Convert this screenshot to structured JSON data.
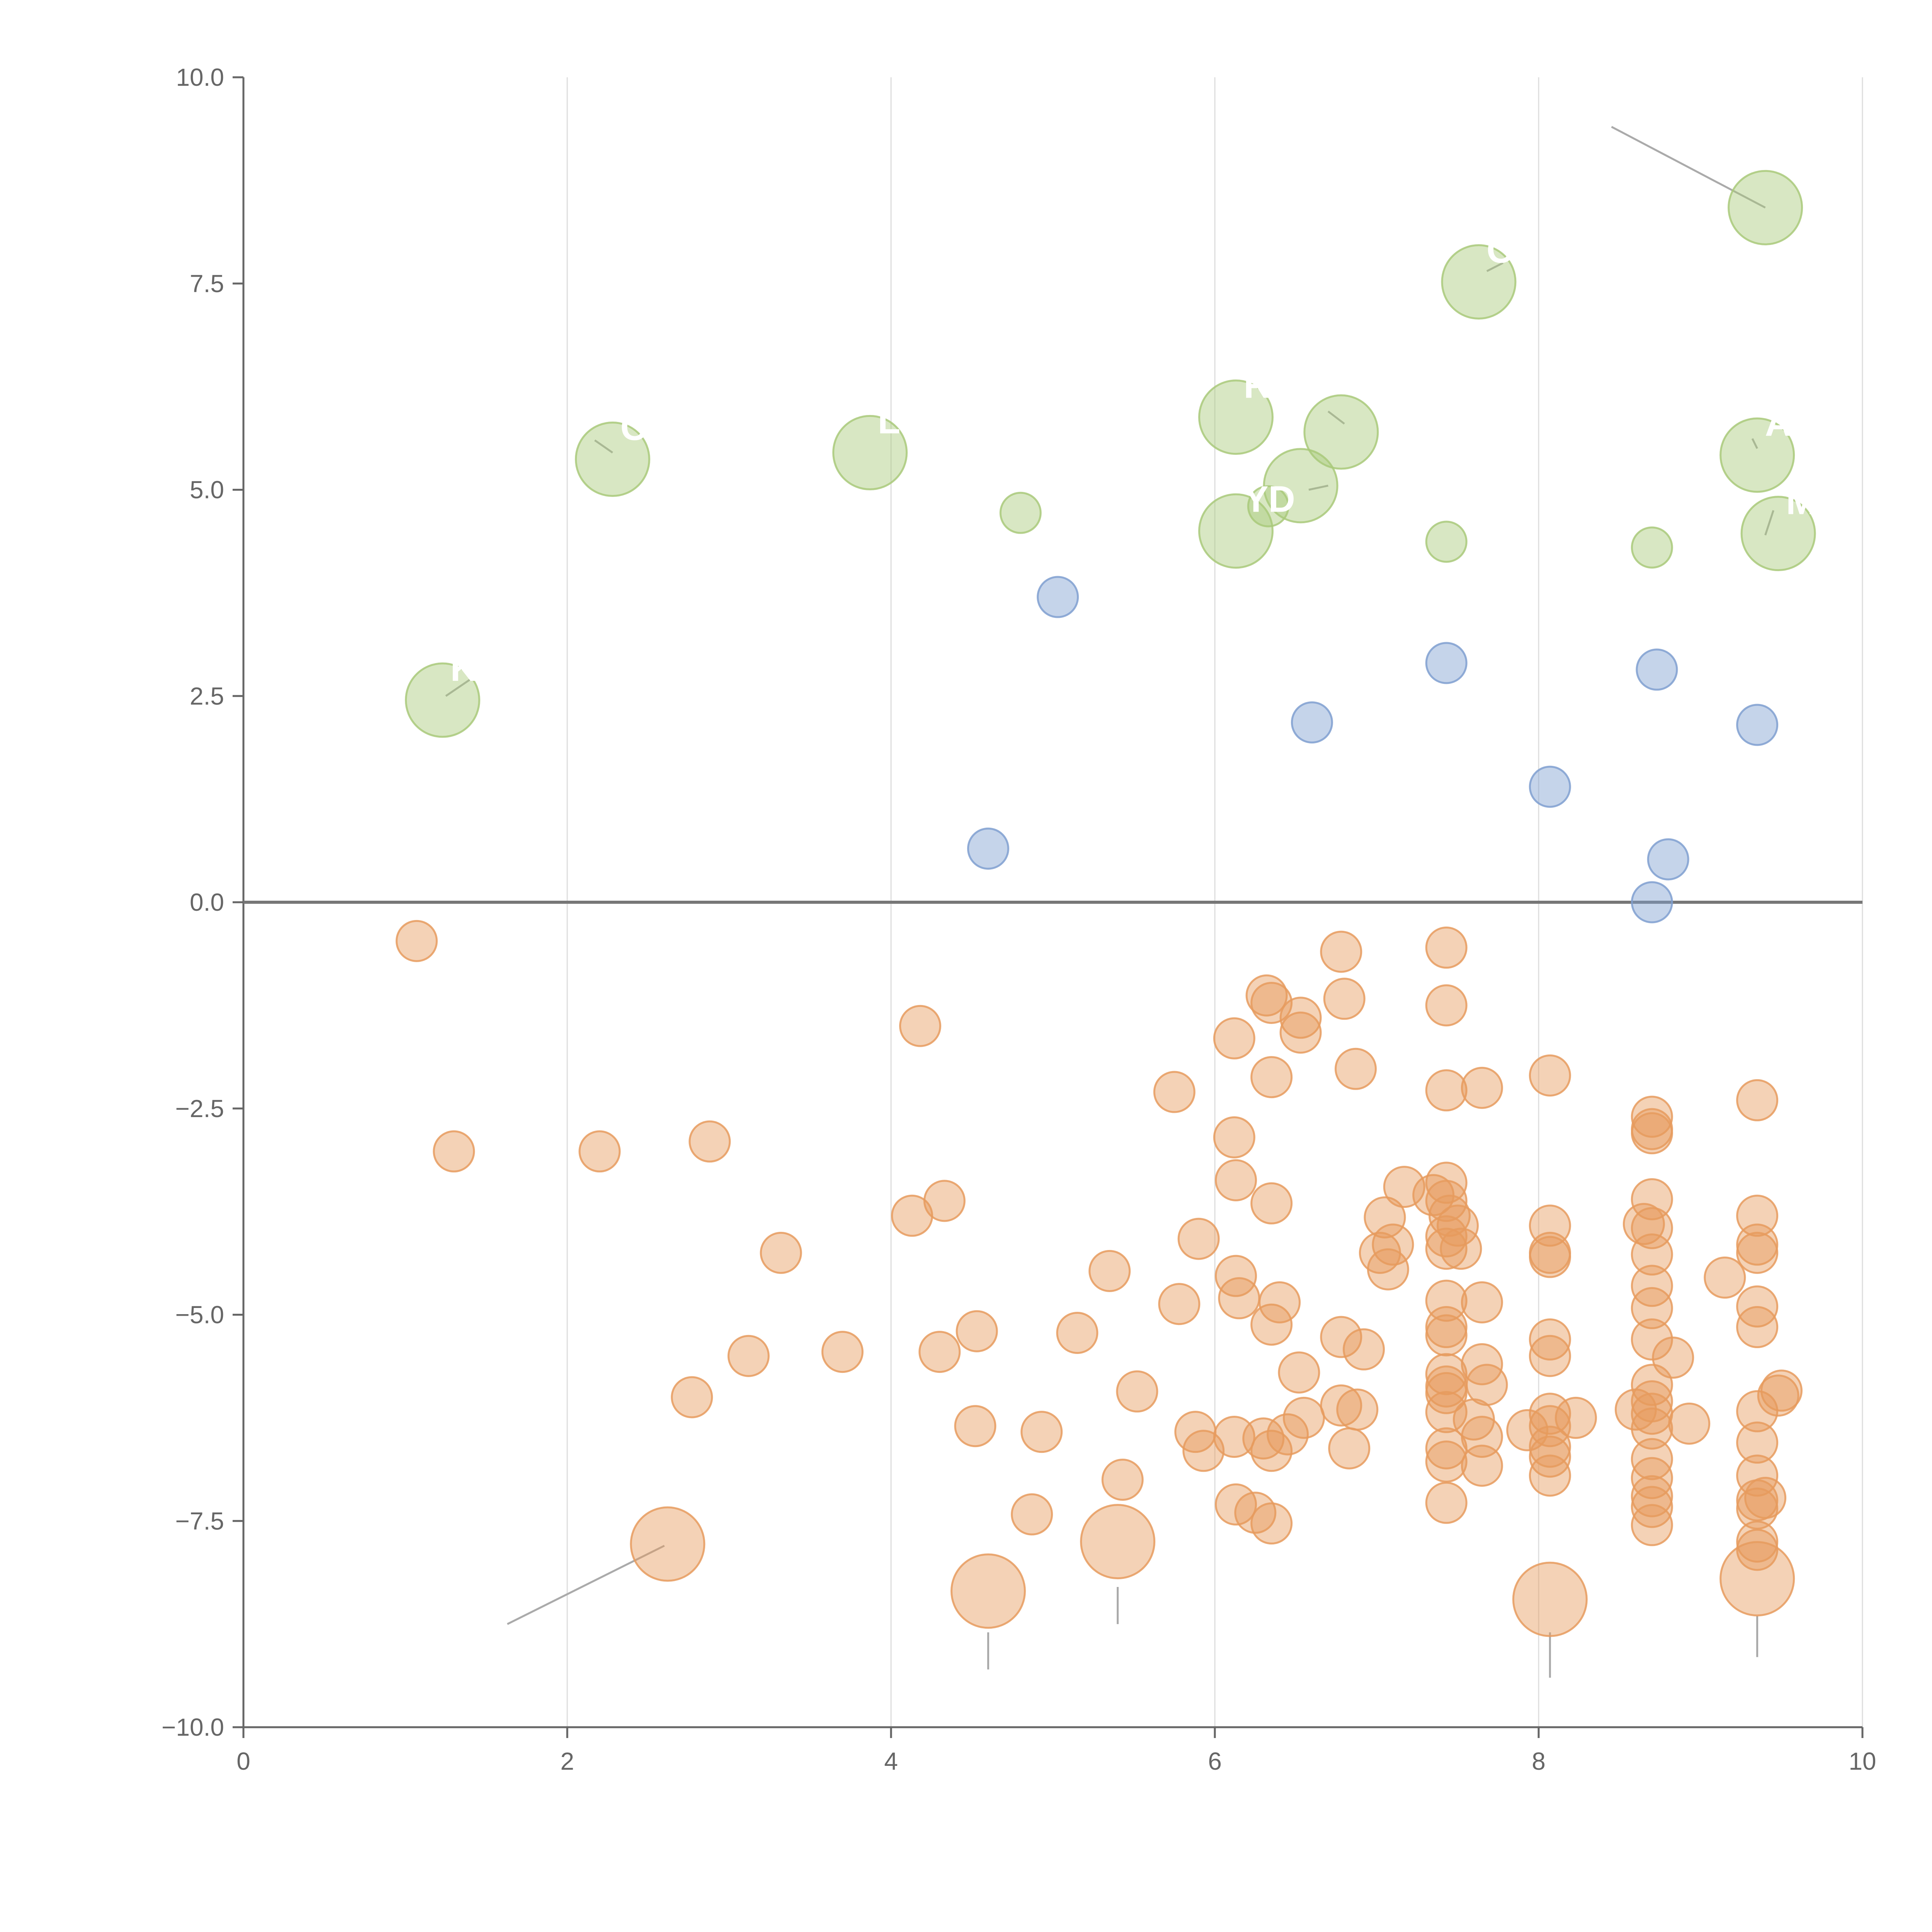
{
  "chart_data": {
    "type": "scatter",
    "title": "",
    "xlabel": "",
    "ylabel": "",
    "xlim": [
      0,
      10
    ],
    "ylim": [
      -10,
      10
    ],
    "xticks": [
      0,
      2,
      4,
      6,
      8,
      10
    ],
    "yticks": [
      -10.0,
      -7.5,
      -5.0,
      -2.5,
      0.0,
      2.5,
      5.0,
      7.5,
      10.0
    ],
    "xtick_labels": [
      "0",
      "2",
      "4",
      "6",
      "8",
      "10"
    ],
    "ytick_labels": [
      "−10.0",
      "−7.5",
      "−5.0",
      "−2.5",
      "0.0",
      "2.5",
      "5.0",
      "7.5",
      "10.0"
    ],
    "grid": "vertical",
    "zero_line": true,
    "colors": {
      "negative": "#e69b5e",
      "positive_small": "#7f9fd0",
      "positive_large": "#a9c97a",
      "axis": "#666666",
      "grid": "#dddddd",
      "zero_line": "#777777",
      "leader_line": "#aaaaaa"
    },
    "series": [
      {
        "name": "positive-large",
        "color": "#a9c97a",
        "points": [
          {
            "x": 1.23,
            "y": 2.45,
            "s": 3,
            "label": "K"
          },
          {
            "x": 2.28,
            "y": 5.37,
            "s": 3,
            "label": "CH"
          },
          {
            "x": 3.87,
            "y": 5.45,
            "s": 3,
            "label": "LEN"
          },
          {
            "x": 6.13,
            "y": 5.88,
            "s": 3,
            "label": "R"
          },
          {
            "x": 6.78,
            "y": 5.7,
            "s": 3,
            "label": ""
          },
          {
            "x": 6.53,
            "y": 5.05,
            "s": 3,
            "label": ""
          },
          {
            "x": 6.13,
            "y": 4.5,
            "s": 3,
            "label": "YD"
          },
          {
            "x": 7.63,
            "y": 7.52,
            "s": 3,
            "label": "OL"
          },
          {
            "x": 9.4,
            "y": 8.42,
            "s": 3,
            "label": ""
          },
          {
            "x": 9.35,
            "y": 5.42,
            "s": 3,
            "label": "AN"
          },
          {
            "x": 9.48,
            "y": 4.47,
            "s": 3,
            "label": "M"
          },
          {
            "x": 4.8,
            "y": 4.72,
            "s": 1,
            "label": ""
          },
          {
            "x": 6.33,
            "y": 4.8,
            "s": 1,
            "label": ""
          },
          {
            "x": 7.43,
            "y": 4.37,
            "s": 1,
            "label": ""
          },
          {
            "x": 8.7,
            "y": 4.3,
            "s": 1,
            "label": ""
          }
        ]
      },
      {
        "name": "positive-small",
        "color": "#7f9fd0",
        "points": [
          {
            "x": 5.03,
            "y": 3.7,
            "s": 1
          },
          {
            "x": 4.6,
            "y": 0.65,
            "s": 1
          },
          {
            "x": 6.6,
            "y": 2.18,
            "s": 1
          },
          {
            "x": 7.43,
            "y": 2.9,
            "s": 1
          },
          {
            "x": 8.07,
            "y": 1.4,
            "s": 1
          },
          {
            "x": 8.73,
            "y": 2.82,
            "s": 1
          },
          {
            "x": 9.35,
            "y": 2.15,
            "s": 1
          },
          {
            "x": 8.8,
            "y": 0.52,
            "s": 1
          },
          {
            "x": 8.7,
            "y": 0.0,
            "s": 1
          }
        ]
      },
      {
        "name": "negative",
        "color": "#e69b5e",
        "points": [
          {
            "x": 1.07,
            "y": -0.47,
            "s": 1
          },
          {
            "x": 1.3,
            "y": -3.02,
            "s": 1
          },
          {
            "x": 2.2,
            "y": -3.02,
            "s": 1
          },
          {
            "x": 2.88,
            "y": -2.9,
            "s": 1
          },
          {
            "x": 3.32,
            "y": -4.25,
            "s": 1
          },
          {
            "x": 3.12,
            "y": -5.5,
            "s": 1
          },
          {
            "x": 3.7,
            "y": -5.45,
            "s": 1
          },
          {
            "x": 2.77,
            "y": -6.0,
            "s": 1
          },
          {
            "x": 4.18,
            "y": -1.5,
            "s": 1
          },
          {
            "x": 4.13,
            "y": -3.8,
            "s": 1
          },
          {
            "x": 4.33,
            "y": -3.62,
            "s": 1
          },
          {
            "x": 4.3,
            "y": -5.45,
            "s": 1
          },
          {
            "x": 4.53,
            "y": -5.2,
            "s": 1
          },
          {
            "x": 4.52,
            "y": -6.35,
            "s": 1
          },
          {
            "x": 4.93,
            "y": -6.42,
            "s": 1
          },
          {
            "x": 4.87,
            "y": -7.42,
            "s": 1
          },
          {
            "x": 5.15,
            "y": -5.22,
            "s": 1
          },
          {
            "x": 5.35,
            "y": -4.47,
            "s": 1
          },
          {
            "x": 5.52,
            "y": -5.93,
            "s": 1
          },
          {
            "x": 5.43,
            "y": -7.0,
            "s": 1
          },
          {
            "x": 5.75,
            "y": -2.3,
            "s": 1
          },
          {
            "x": 5.78,
            "y": -4.87,
            "s": 1
          },
          {
            "x": 5.9,
            "y": -4.08,
            "s": 1
          },
          {
            "x": 5.88,
            "y": -6.42,
            "s": 1
          },
          {
            "x": 5.93,
            "y": -6.65,
            "s": 1
          },
          {
            "x": 6.12,
            "y": -1.65,
            "s": 1
          },
          {
            "x": 6.12,
            "y": -2.85,
            "s": 1
          },
          {
            "x": 6.13,
            "y": -3.37,
            "s": 1
          },
          {
            "x": 6.13,
            "y": -4.53,
            "s": 1
          },
          {
            "x": 6.15,
            "y": -4.8,
            "s": 1
          },
          {
            "x": 6.12,
            "y": -6.48,
            "s": 1
          },
          {
            "x": 6.13,
            "y": -7.3,
            "s": 1
          },
          {
            "x": 6.25,
            "y": -7.4,
            "s": 1
          },
          {
            "x": 6.32,
            "y": -1.13,
            "s": 1
          },
          {
            "x": 6.35,
            "y": -1.22,
            "s": 1
          },
          {
            "x": 6.35,
            "y": -2.12,
            "s": 1
          },
          {
            "x": 6.35,
            "y": -3.65,
            "s": 1
          },
          {
            "x": 6.35,
            "y": -5.12,
            "s": 1
          },
          {
            "x": 6.4,
            "y": -4.85,
            "s": 1
          },
          {
            "x": 6.3,
            "y": -6.5,
            "s": 1
          },
          {
            "x": 6.35,
            "y": -6.65,
            "s": 1
          },
          {
            "x": 6.35,
            "y": -7.53,
            "s": 1
          },
          {
            "x": 6.45,
            "y": -6.45,
            "s": 1
          },
          {
            "x": 6.53,
            "y": -1.4,
            "s": 1
          },
          {
            "x": 6.53,
            "y": -1.58,
            "s": 1
          },
          {
            "x": 6.52,
            "y": -5.7,
            "s": 1
          },
          {
            "x": 6.55,
            "y": -6.25,
            "s": 1
          },
          {
            "x": 6.78,
            "y": -0.6,
            "s": 1
          },
          {
            "x": 6.8,
            "y": -1.17,
            "s": 1
          },
          {
            "x": 6.87,
            "y": -2.02,
            "s": 1
          },
          {
            "x": 6.78,
            "y": -5.27,
            "s": 1
          },
          {
            "x": 6.92,
            "y": -5.42,
            "s": 1
          },
          {
            "x": 6.78,
            "y": -6.1,
            "s": 1
          },
          {
            "x": 6.88,
            "y": -6.15,
            "s": 1
          },
          {
            "x": 6.83,
            "y": -6.62,
            "s": 1
          },
          {
            "x": 7.05,
            "y": -3.82,
            "s": 1
          },
          {
            "x": 7.1,
            "y": -4.15,
            "s": 1
          },
          {
            "x": 7.02,
            "y": -4.25,
            "s": 1
          },
          {
            "x": 7.07,
            "y": -4.45,
            "s": 1
          },
          {
            "x": 7.17,
            "y": -3.45,
            "s": 1
          },
          {
            "x": 7.35,
            "y": -3.55,
            "s": 1
          },
          {
            "x": 7.43,
            "y": -0.55,
            "s": 1
          },
          {
            "x": 7.43,
            "y": -1.25,
            "s": 1
          },
          {
            "x": 7.43,
            "y": -2.28,
            "s": 1
          },
          {
            "x": 7.43,
            "y": -3.4,
            "s": 1
          },
          {
            "x": 7.43,
            "y": -3.62,
            "s": 1
          },
          {
            "x": 7.45,
            "y": -3.8,
            "s": 1
          },
          {
            "x": 7.5,
            "y": -3.92,
            "s": 1
          },
          {
            "x": 7.43,
            "y": -4.05,
            "s": 1
          },
          {
            "x": 7.43,
            "y": -4.2,
            "s": 1
          },
          {
            "x": 7.52,
            "y": -4.2,
            "s": 1
          },
          {
            "x": 7.43,
            "y": -4.83,
            "s": 1
          },
          {
            "x": 7.43,
            "y": -5.15,
            "s": 1
          },
          {
            "x": 7.43,
            "y": -5.25,
            "s": 1
          },
          {
            "x": 7.43,
            "y": -5.72,
            "s": 1
          },
          {
            "x": 7.43,
            "y": -5.87,
            "s": 1
          },
          {
            "x": 7.43,
            "y": -5.95,
            "s": 1
          },
          {
            "x": 7.43,
            "y": -6.18,
            "s": 1
          },
          {
            "x": 7.43,
            "y": -6.62,
            "s": 1
          },
          {
            "x": 7.43,
            "y": -6.78,
            "s": 1
          },
          {
            "x": 7.43,
            "y": -7.28,
            "s": 1
          },
          {
            "x": 7.65,
            "y": -2.25,
            "s": 1
          },
          {
            "x": 7.65,
            "y": -4.85,
            "s": 1
          },
          {
            "x": 7.65,
            "y": -5.6,
            "s": 1
          },
          {
            "x": 7.68,
            "y": -5.85,
            "s": 1
          },
          {
            "x": 7.6,
            "y": -6.27,
            "s": 1
          },
          {
            "x": 7.65,
            "y": -6.48,
            "s": 1
          },
          {
            "x": 7.65,
            "y": -6.83,
            "s": 1
          },
          {
            "x": 8.07,
            "y": -2.1,
            "s": 1
          },
          {
            "x": 8.07,
            "y": -3.92,
            "s": 1
          },
          {
            "x": 8.07,
            "y": -4.25,
            "s": 1
          },
          {
            "x": 8.07,
            "y": -4.3,
            "s": 1
          },
          {
            "x": 8.07,
            "y": -5.3,
            "s": 1
          },
          {
            "x": 8.07,
            "y": -5.5,
            "s": 1
          },
          {
            "x": 8.07,
            "y": -6.2,
            "s": 1
          },
          {
            "x": 8.07,
            "y": -6.35,
            "s": 1
          },
          {
            "x": 7.93,
            "y": -6.4,
            "s": 1
          },
          {
            "x": 8.07,
            "y": -6.6,
            "s": 1
          },
          {
            "x": 8.07,
            "y": -6.72,
            "s": 1
          },
          {
            "x": 8.07,
            "y": -6.95,
            "s": 1
          },
          {
            "x": 8.23,
            "y": -6.25,
            "s": 1
          },
          {
            "x": 8.6,
            "y": -6.15,
            "s": 1
          },
          {
            "x": 8.7,
            "y": -2.6,
            "s": 1
          },
          {
            "x": 8.7,
            "y": -2.75,
            "s": 1
          },
          {
            "x": 8.7,
            "y": -2.8,
            "s": 1
          },
          {
            "x": 8.7,
            "y": -3.6,
            "s": 1
          },
          {
            "x": 8.65,
            "y": -3.9,
            "s": 1
          },
          {
            "x": 8.7,
            "y": -3.95,
            "s": 1
          },
          {
            "x": 8.7,
            "y": -4.27,
            "s": 1
          },
          {
            "x": 8.7,
            "y": -4.65,
            "s": 1
          },
          {
            "x": 8.7,
            "y": -4.92,
            "s": 1
          },
          {
            "x": 8.7,
            "y": -5.3,
            "s": 1
          },
          {
            "x": 8.83,
            "y": -5.52,
            "s": 1
          },
          {
            "x": 8.7,
            "y": -5.85,
            "s": 1
          },
          {
            "x": 8.7,
            "y": -6.05,
            "s": 1
          },
          {
            "x": 8.7,
            "y": -6.2,
            "s": 1
          },
          {
            "x": 8.7,
            "y": -6.38,
            "s": 1
          },
          {
            "x": 8.7,
            "y": -6.75,
            "s": 1
          },
          {
            "x": 8.7,
            "y": -6.98,
            "s": 1
          },
          {
            "x": 8.7,
            "y": -7.2,
            "s": 1
          },
          {
            "x": 8.7,
            "y": -7.33,
            "s": 1
          },
          {
            "x": 8.7,
            "y": -7.55,
            "s": 1
          },
          {
            "x": 8.93,
            "y": -6.32,
            "s": 1
          },
          {
            "x": 9.15,
            "y": -4.55,
            "s": 1
          },
          {
            "x": 9.35,
            "y": -2.4,
            "s": 1
          },
          {
            "x": 9.35,
            "y": -3.8,
            "s": 1
          },
          {
            "x": 9.35,
            "y": -4.15,
            "s": 1
          },
          {
            "x": 9.35,
            "y": -4.25,
            "s": 1
          },
          {
            "x": 9.35,
            "y": -4.9,
            "s": 1
          },
          {
            "x": 9.35,
            "y": -5.15,
            "s": 1
          },
          {
            "x": 9.35,
            "y": -6.17,
            "s": 1
          },
          {
            "x": 9.35,
            "y": -6.55,
            "s": 1
          },
          {
            "x": 9.35,
            "y": -6.95,
            "s": 1
          },
          {
            "x": 9.35,
            "y": -7.25,
            "s": 1
          },
          {
            "x": 9.4,
            "y": -7.22,
            "s": 1
          },
          {
            "x": 9.35,
            "y": -7.35,
            "s": 1
          },
          {
            "x": 9.35,
            "y": -7.75,
            "s": 1
          },
          {
            "x": 9.35,
            "y": -7.85,
            "s": 1
          },
          {
            "x": 9.5,
            "y": -5.92,
            "s": 1
          },
          {
            "x": 9.48,
            "y": -5.98,
            "s": 1
          },
          {
            "x": 2.62,
            "y": -7.78,
            "s": 3
          },
          {
            "x": 4.6,
            "y": -8.35,
            "s": 3
          },
          {
            "x": 5.4,
            "y": -7.75,
            "s": 3
          },
          {
            "x": 8.07,
            "y": -8.45,
            "s": 3
          },
          {
            "x": 9.35,
            "y": -8.2,
            "s": 3
          }
        ]
      }
    ],
    "leader_lines": [
      {
        "from": [
          9.4,
          8.42
        ],
        "to": [
          8.45,
          9.4
        ]
      },
      {
        "from": [
          2.6,
          -7.8
        ],
        "to": [
          1.63,
          -8.75
        ]
      },
      {
        "from": [
          4.6,
          -8.85
        ],
        "to": [
          4.6,
          -9.3
        ]
      },
      {
        "from": [
          5.4,
          -8.3
        ],
        "to": [
          5.4,
          -8.75
        ]
      },
      {
        "from": [
          8.07,
          -8.85
        ],
        "to": [
          8.07,
          -9.4
        ]
      },
      {
        "from": [
          9.35,
          -8.65
        ],
        "to": [
          9.35,
          -9.15
        ]
      },
      {
        "from": [
          1.25,
          2.5
        ],
        "to": [
          1.4,
          2.7
        ]
      },
      {
        "from": [
          2.28,
          5.45
        ],
        "to": [
          2.17,
          5.6
        ]
      },
      {
        "from": [
          6.7,
          5.05
        ],
        "to": [
          6.58,
          5.0
        ]
      },
      {
        "from": [
          6.8,
          5.8
        ],
        "to": [
          6.7,
          5.95
        ]
      },
      {
        "from": [
          7.68,
          7.65
        ],
        "to": [
          7.78,
          7.75
        ]
      },
      {
        "from": [
          9.35,
          5.5
        ],
        "to": [
          9.32,
          5.62
        ]
      },
      {
        "from": [
          9.4,
          4.45
        ],
        "to": [
          9.45,
          4.75
        ]
      }
    ]
  }
}
